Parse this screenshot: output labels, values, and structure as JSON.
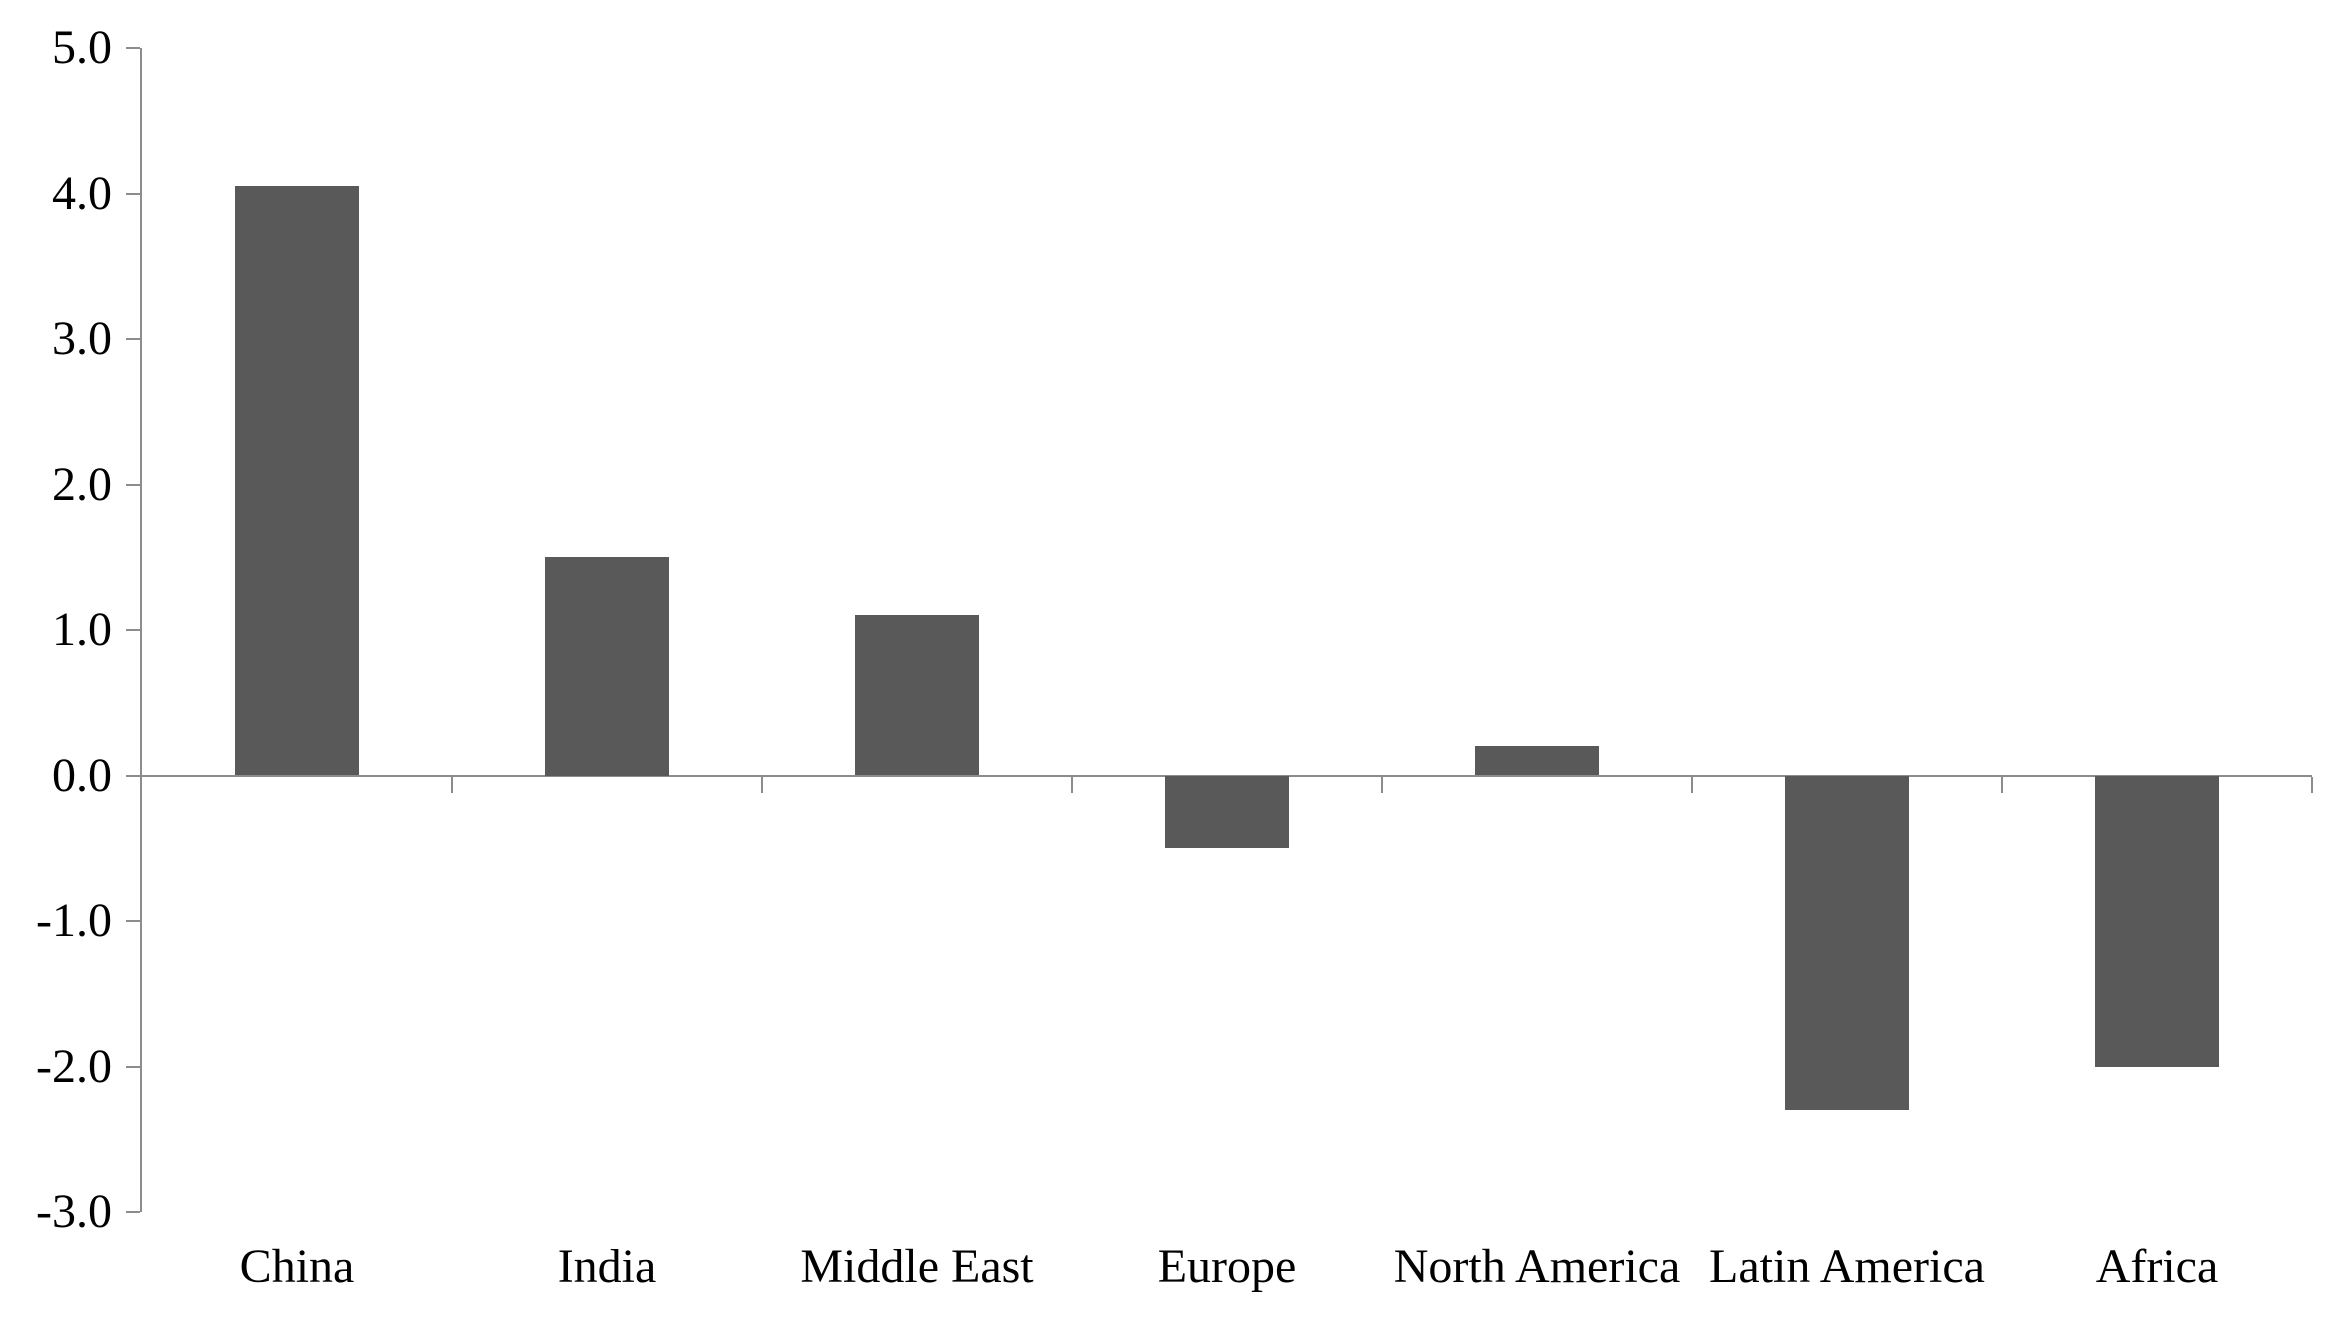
{
  "chart_data": {
    "type": "bar",
    "title": "",
    "xlabel": "",
    "ylabel": "",
    "categories": [
      "China",
      "India",
      "Middle East",
      "Europe",
      "North America",
      "Latin America",
      "Africa"
    ],
    "values": [
      4.05,
      1.5,
      1.1,
      -0.5,
      0.2,
      -2.3,
      -2.0
    ],
    "series_name": "",
    "ylim": [
      -3.0,
      5.0
    ],
    "y_tick_step": 1.0,
    "y_tick_labels": [
      "5.0",
      "4.0",
      "3.0",
      "2.0",
      "1.0",
      "0.0",
      "-1.0",
      "-2.0",
      "-3.0"
    ],
    "y_tick_values": [
      5.0,
      4.0,
      3.0,
      2.0,
      1.0,
      0.0,
      -1.0,
      -2.0,
      -3.0
    ],
    "grid": false,
    "legend": false,
    "bar_color": "#595959",
    "axis_color": "#8C8C8C",
    "text_color": "#000000",
    "background_color": "#FFFFFF"
  }
}
